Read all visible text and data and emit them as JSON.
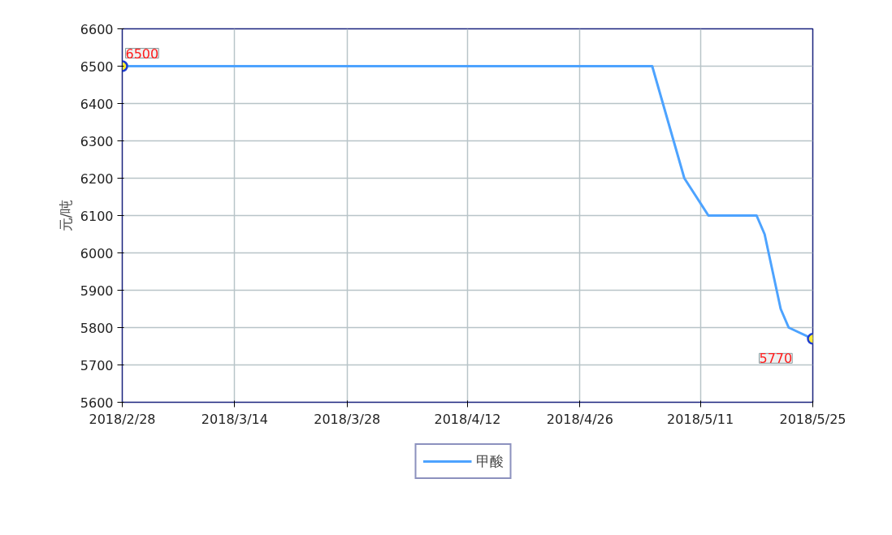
{
  "chart_data": {
    "type": "line",
    "ylabel": "元/吨",
    "x": [
      "2018-02-28",
      "2018-05-05",
      "2018-05-09",
      "2018-05-12",
      "2018-05-18",
      "2018-05-19",
      "2018-05-21",
      "2018-05-22",
      "2018-05-25"
    ],
    "series": [
      {
        "name": "甲酸",
        "color": "#4da3ff",
        "values": [
          6500,
          6500,
          6200,
          6100,
          6100,
          6050,
          5850,
          5800,
          5770
        ],
        "value_labels": [
          "6500",
          null,
          null,
          null,
          null,
          null,
          null,
          null,
          "5770"
        ]
      }
    ],
    "xlim": [
      "2018-02-28",
      "2018-05-25"
    ],
    "xticks": [
      {
        "value": "2018-02-28",
        "label": "2018/2/28"
      },
      {
        "value": "2018-03-14",
        "label": "2018/3/14"
      },
      {
        "value": "2018-03-28",
        "label": "2018/3/28"
      },
      {
        "value": "2018-04-12",
        "label": "2018/4/12"
      },
      {
        "value": "2018-04-26",
        "label": "2018/4/26"
      },
      {
        "value": "2018-05-11",
        "label": "2018/5/11"
      },
      {
        "value": "2018-05-25",
        "label": "2018/5/25"
      }
    ],
    "ylim": [
      5600,
      6600
    ],
    "yticks": [
      5600,
      5700,
      5800,
      5900,
      6000,
      6100,
      6200,
      6300,
      6400,
      6500,
      6600
    ],
    "grid": true,
    "legend": "bottom"
  }
}
